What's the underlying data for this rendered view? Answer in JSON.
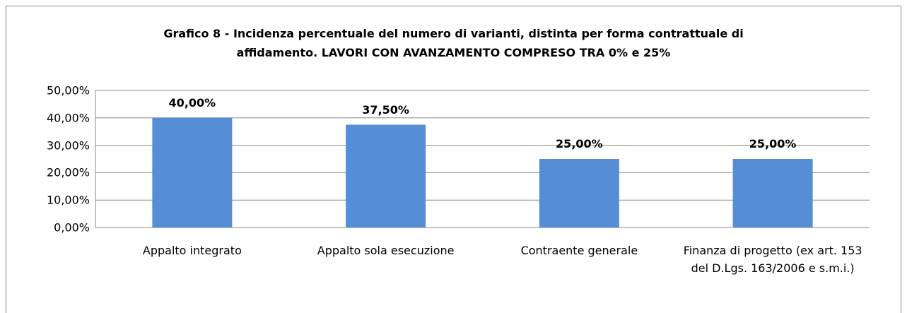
{
  "chart_data": {
    "type": "bar",
    "title": [
      "Grafico 8 - Incidenza percentuale del numero di varianti, distinta per forma contrattuale di",
      "affidamento. LAVORI CON AVANZAMENTO COMPRESO TRA 0% e 25%"
    ],
    "categories": [
      "Appalto integrato",
      "Appalto sola esecuzione",
      "Contraente generale",
      "Finanza di progetto (ex art. 153 del D.Lgs. 163/2006 e s.m.i.)"
    ],
    "values": [
      40,
      37.5,
      25,
      25
    ],
    "value_labels": [
      "40,00%",
      "37,50%",
      "25,00%",
      "25,00%"
    ],
    "color": "#558ed5",
    "ylim": [
      0,
      50
    ],
    "yticks": [
      {
        "value": 0,
        "label": "0,00%"
      },
      {
        "value": 10,
        "label": "10,00%"
      },
      {
        "value": 20,
        "label": "20,00%"
      },
      {
        "value": 30,
        "label": "30,00%"
      },
      {
        "value": 40,
        "label": "40,00%"
      },
      {
        "value": 50,
        "label": "50,00%"
      }
    ],
    "grid": true
  }
}
